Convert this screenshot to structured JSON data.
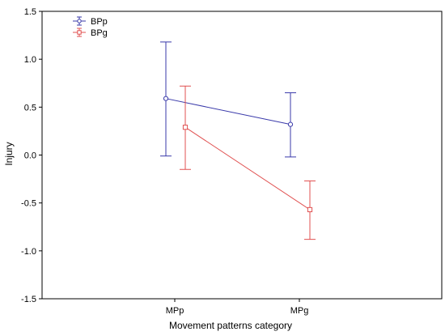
{
  "chart_data": {
    "type": "line",
    "title": "",
    "xlabel": "Movement patterns category",
    "ylabel": "Injury",
    "categories": [
      "MPp",
      "MPg"
    ],
    "ylim": [
      -1.5,
      1.5
    ],
    "yticks": [
      1.5,
      1.0,
      0.5,
      0.0,
      -0.5,
      -1.0,
      -1.5
    ],
    "ytick_labels": [
      "1.5",
      "1.0",
      "0.5",
      "0.0",
      "-0.5",
      "-1.0",
      "-1.5"
    ],
    "grid": false,
    "legend_position": "top-left",
    "series": [
      {
        "name": "BPp",
        "color": "#3a3aaa",
        "marker": "circle",
        "values": [
          0.59,
          0.32
        ],
        "error_low": [
          -0.01,
          -0.02
        ],
        "error_high": [
          1.18,
          0.65
        ]
      },
      {
        "name": "BPg",
        "color": "#e05050",
        "marker": "square",
        "values": [
          0.29,
          -0.57
        ],
        "error_low": [
          -0.15,
          -0.88
        ],
        "error_high": [
          0.72,
          -0.27
        ]
      }
    ]
  }
}
